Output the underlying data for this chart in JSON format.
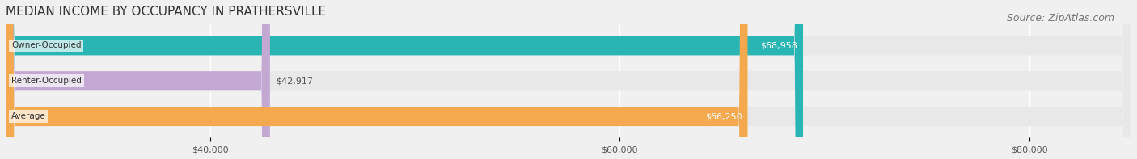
{
  "title": "MEDIAN INCOME BY OCCUPANCY IN PRATHERSVILLE",
  "source": "Source: ZipAtlas.com",
  "categories": [
    "Owner-Occupied",
    "Renter-Occupied",
    "Average"
  ],
  "values": [
    68958,
    42917,
    66250
  ],
  "bar_colors": [
    "#2ab5b5",
    "#c4a8d4",
    "#f5a94e"
  ],
  "bar_labels": [
    "$68,958",
    "$42,917",
    "$66,250"
  ],
  "label_colors": [
    "#ffffff",
    "#555555",
    "#ffffff"
  ],
  "xlim": [
    30000,
    85000
  ],
  "xticks": [
    40000,
    60000,
    80000
  ],
  "xticklabels": [
    "$40,000",
    "$60,000",
    "$80,000"
  ],
  "background_color": "#f0f0f0",
  "bar_bg_color": "#e8e8e8",
  "title_fontsize": 11,
  "source_fontsize": 9,
  "bar_height": 0.55,
  "figsize": [
    14.06,
    1.97
  ],
  "dpi": 100
}
